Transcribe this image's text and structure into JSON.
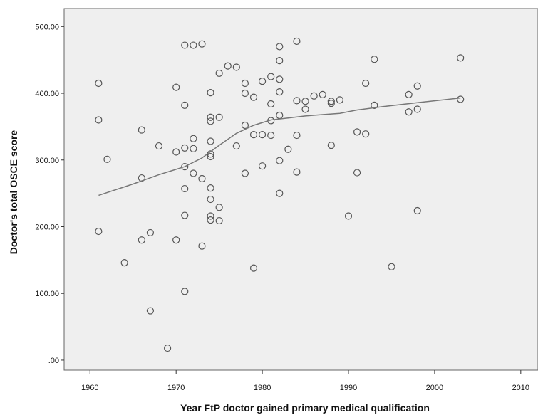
{
  "chart_data": {
    "type": "scatter",
    "title": "",
    "xlabel": "Year FtP doctor gained primary medical qualification",
    "ylabel": "Doctor's total OSCE score",
    "xlim": [
      1957,
      2012
    ],
    "ylim": [
      -15,
      527
    ],
    "x_ticks": [
      1960,
      1970,
      1980,
      1990,
      2000,
      2010
    ],
    "x_tick_labels": [
      "1960",
      "1970",
      "1980",
      "1990",
      "2000",
      "2010"
    ],
    "y_ticks": [
      0,
      100,
      200,
      300,
      400,
      500
    ],
    "y_tick_labels": [
      ".00",
      "100.00",
      "200.00",
      "300.00",
      "400.00",
      "500.00"
    ],
    "grid": false,
    "colors": {
      "plot_background": "#efefef",
      "marker": "#555555",
      "fit_line": "#777777",
      "frame": "#666666"
    },
    "series": [
      {
        "kind": "points",
        "points": [
          [
            1961,
            415
          ],
          [
            1961,
            360
          ],
          [
            1961,
            193
          ],
          [
            1962,
            301
          ],
          [
            1964,
            146
          ],
          [
            1966,
            345
          ],
          [
            1966,
            273
          ],
          [
            1966,
            180
          ],
          [
            1967,
            191
          ],
          [
            1967,
            74
          ],
          [
            1968,
            321
          ],
          [
            1969,
            18
          ],
          [
            1970,
            409
          ],
          [
            1970,
            312
          ],
          [
            1970,
            180
          ],
          [
            1971,
            472
          ],
          [
            1971,
            382
          ],
          [
            1971,
            318
          ],
          [
            1971,
            290
          ],
          [
            1971,
            257
          ],
          [
            1971,
            217
          ],
          [
            1971,
            103
          ],
          [
            1972,
            472
          ],
          [
            1972,
            332
          ],
          [
            1972,
            317
          ],
          [
            1972,
            280
          ],
          [
            1973,
            474
          ],
          [
            1973,
            272
          ],
          [
            1973,
            171
          ],
          [
            1974,
            401
          ],
          [
            1974,
            364
          ],
          [
            1974,
            358
          ],
          [
            1974,
            328
          ],
          [
            1974,
            309
          ],
          [
            1974,
            305
          ],
          [
            1974,
            258
          ],
          [
            1974,
            241
          ],
          [
            1974,
            216
          ],
          [
            1974,
            210
          ],
          [
            1975,
            430
          ],
          [
            1975,
            364
          ],
          [
            1975,
            229
          ],
          [
            1975,
            209
          ],
          [
            1976,
            441
          ],
          [
            1977,
            439
          ],
          [
            1977,
            321
          ],
          [
            1978,
            415
          ],
          [
            1978,
            400
          ],
          [
            1978,
            352
          ],
          [
            1978,
            280
          ],
          [
            1979,
            394
          ],
          [
            1979,
            338
          ],
          [
            1979,
            138
          ],
          [
            1980,
            418
          ],
          [
            1980,
            338
          ],
          [
            1980,
            291
          ],
          [
            1981,
            425
          ],
          [
            1981,
            384
          ],
          [
            1981,
            359
          ],
          [
            1981,
            337
          ],
          [
            1982,
            470
          ],
          [
            1982,
            449
          ],
          [
            1982,
            421
          ],
          [
            1982,
            402
          ],
          [
            1982,
            367
          ],
          [
            1982,
            299
          ],
          [
            1982,
            250
          ],
          [
            1983,
            316
          ],
          [
            1984,
            478
          ],
          [
            1984,
            389
          ],
          [
            1984,
            337
          ],
          [
            1984,
            282
          ],
          [
            1985,
            388
          ],
          [
            1985,
            376
          ],
          [
            1986,
            396
          ],
          [
            1987,
            398
          ],
          [
            1988,
            388
          ],
          [
            1988,
            385
          ],
          [
            1988,
            322
          ],
          [
            1989,
            390
          ],
          [
            1990,
            216
          ],
          [
            1991,
            342
          ],
          [
            1991,
            281
          ],
          [
            1992,
            415
          ],
          [
            1992,
            339
          ],
          [
            1993,
            451
          ],
          [
            1993,
            382
          ],
          [
            1995,
            140
          ],
          [
            1997,
            398
          ],
          [
            1997,
            372
          ],
          [
            1998,
            411
          ],
          [
            1998,
            376
          ],
          [
            1998,
            224
          ],
          [
            2003,
            453
          ],
          [
            2003,
            391
          ]
        ]
      },
      {
        "kind": "fit-line",
        "points": [
          [
            1961,
            247
          ],
          [
            1965,
            264
          ],
          [
            1968,
            278
          ],
          [
            1971,
            290
          ],
          [
            1973,
            303
          ],
          [
            1975,
            322
          ],
          [
            1977,
            340
          ],
          [
            1979,
            352
          ],
          [
            1981,
            360
          ],
          [
            1983,
            363
          ],
          [
            1985,
            366
          ],
          [
            1987,
            368
          ],
          [
            1989,
            370
          ],
          [
            1991,
            375
          ],
          [
            1994,
            380
          ],
          [
            1998,
            386
          ],
          [
            2003,
            393
          ]
        ]
      }
    ]
  }
}
